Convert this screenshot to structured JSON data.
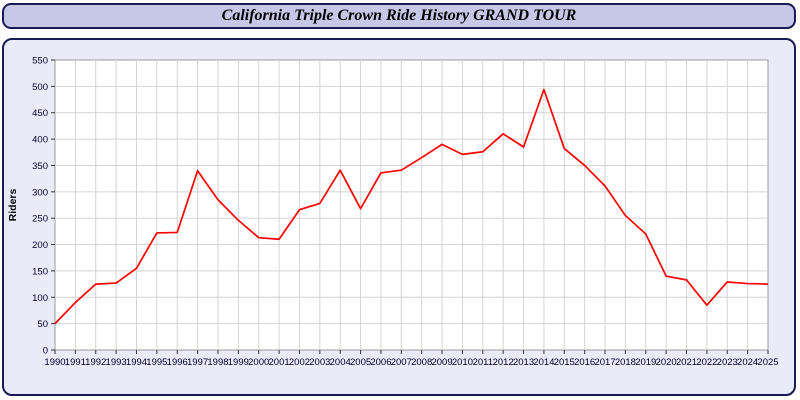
{
  "header": {
    "title": "California Triple Crown Ride History GRAND TOUR"
  },
  "chart_data": {
    "type": "line",
    "title": "California Triple Crown Ride History GRAND TOUR",
    "xlabel": "",
    "ylabel": "Riders",
    "ylim": [
      0,
      550
    ],
    "ytick_step": 50,
    "grid": true,
    "legend": "none",
    "x": [
      1990,
      1991,
      1992,
      1993,
      1994,
      1995,
      1996,
      1997,
      1998,
      1999,
      2000,
      2001,
      2002,
      2003,
      2004,
      2005,
      2006,
      2007,
      2008,
      2009,
      2010,
      2011,
      2012,
      2013,
      2014,
      2015,
      2016,
      2017,
      2018,
      2019,
      2020,
      2021,
      2022,
      2023,
      2024,
      2025
    ],
    "series": [
      {
        "name": "Riders",
        "color": "#ff0000",
        "values": [
          50,
          90,
          125,
          127,
          155,
          222,
          223,
          340,
          285,
          246,
          213,
          210,
          266,
          278,
          341,
          268,
          336,
          341,
          365,
          390,
          371,
          376,
          410,
          385,
          494,
          382,
          350,
          311,
          255,
          220,
          140,
          133,
          85,
          129,
          126,
          125
        ]
      }
    ],
    "colors": {
      "plot_bg": "#ffffff",
      "plot_border": "#999999",
      "grid_color": "#d4d4d4",
      "tick_color": "#333333",
      "tick_label_color": "#00002e",
      "axis_label_color": "#000000",
      "panel_bg": "#eaeaf8",
      "header_bg": "#c7c7e8",
      "frame_border": "#1a1a55"
    }
  }
}
